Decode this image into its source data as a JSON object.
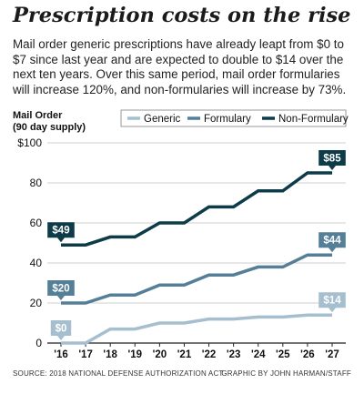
{
  "title": "Prescription costs on the rise",
  "subtitle": "Mail order generic prescriptions have already leapt from $0 to $7 since last year and are expected to double to $14 over the next ten years. Over this same period, mail order formularies will increase 120%, and non-formularies will increase by 73%.",
  "source": "SOURCE: 2018 NATIONAL DEFENSE AUTHORIZATION ACT",
  "credit": "GRAPHIC BY JOHN HARMAN/STAFF",
  "colors": {
    "generic": "#a6bfcf",
    "formulary": "#557f97",
    "non_formulary": "#0d3b48",
    "grid": "#cfcfcf",
    "axis": "#222222"
  },
  "chart_data": {
    "type": "line",
    "ylabel": "Mail Order\n(90 day supply)",
    "x": [
      "'16",
      "'17",
      "'18",
      "'19",
      "'20",
      "'21",
      "'22",
      "'23",
      "'24",
      "'25",
      "'26",
      "'27"
    ],
    "yticks": [
      "$100",
      "80",
      "60",
      "40",
      "20",
      "0"
    ],
    "ylim": [
      0,
      100
    ],
    "legend": "top",
    "grid": true,
    "series": [
      {
        "name": "Generic",
        "values": [
          0,
          0,
          7,
          7,
          10,
          10,
          12,
          12,
          13,
          13,
          14,
          14
        ],
        "start_label": "$0",
        "end_label": "$14"
      },
      {
        "name": "Formulary",
        "values": [
          20,
          20,
          24,
          24,
          29,
          29,
          34,
          34,
          38,
          38,
          44,
          44
        ],
        "start_label": "$20",
        "end_label": "$44"
      },
      {
        "name": "Non-Formulary",
        "values": [
          49,
          49,
          53,
          53,
          60,
          60,
          68,
          68,
          76,
          76,
          85,
          85
        ],
        "start_label": "$49",
        "end_label": "$85"
      }
    ]
  }
}
